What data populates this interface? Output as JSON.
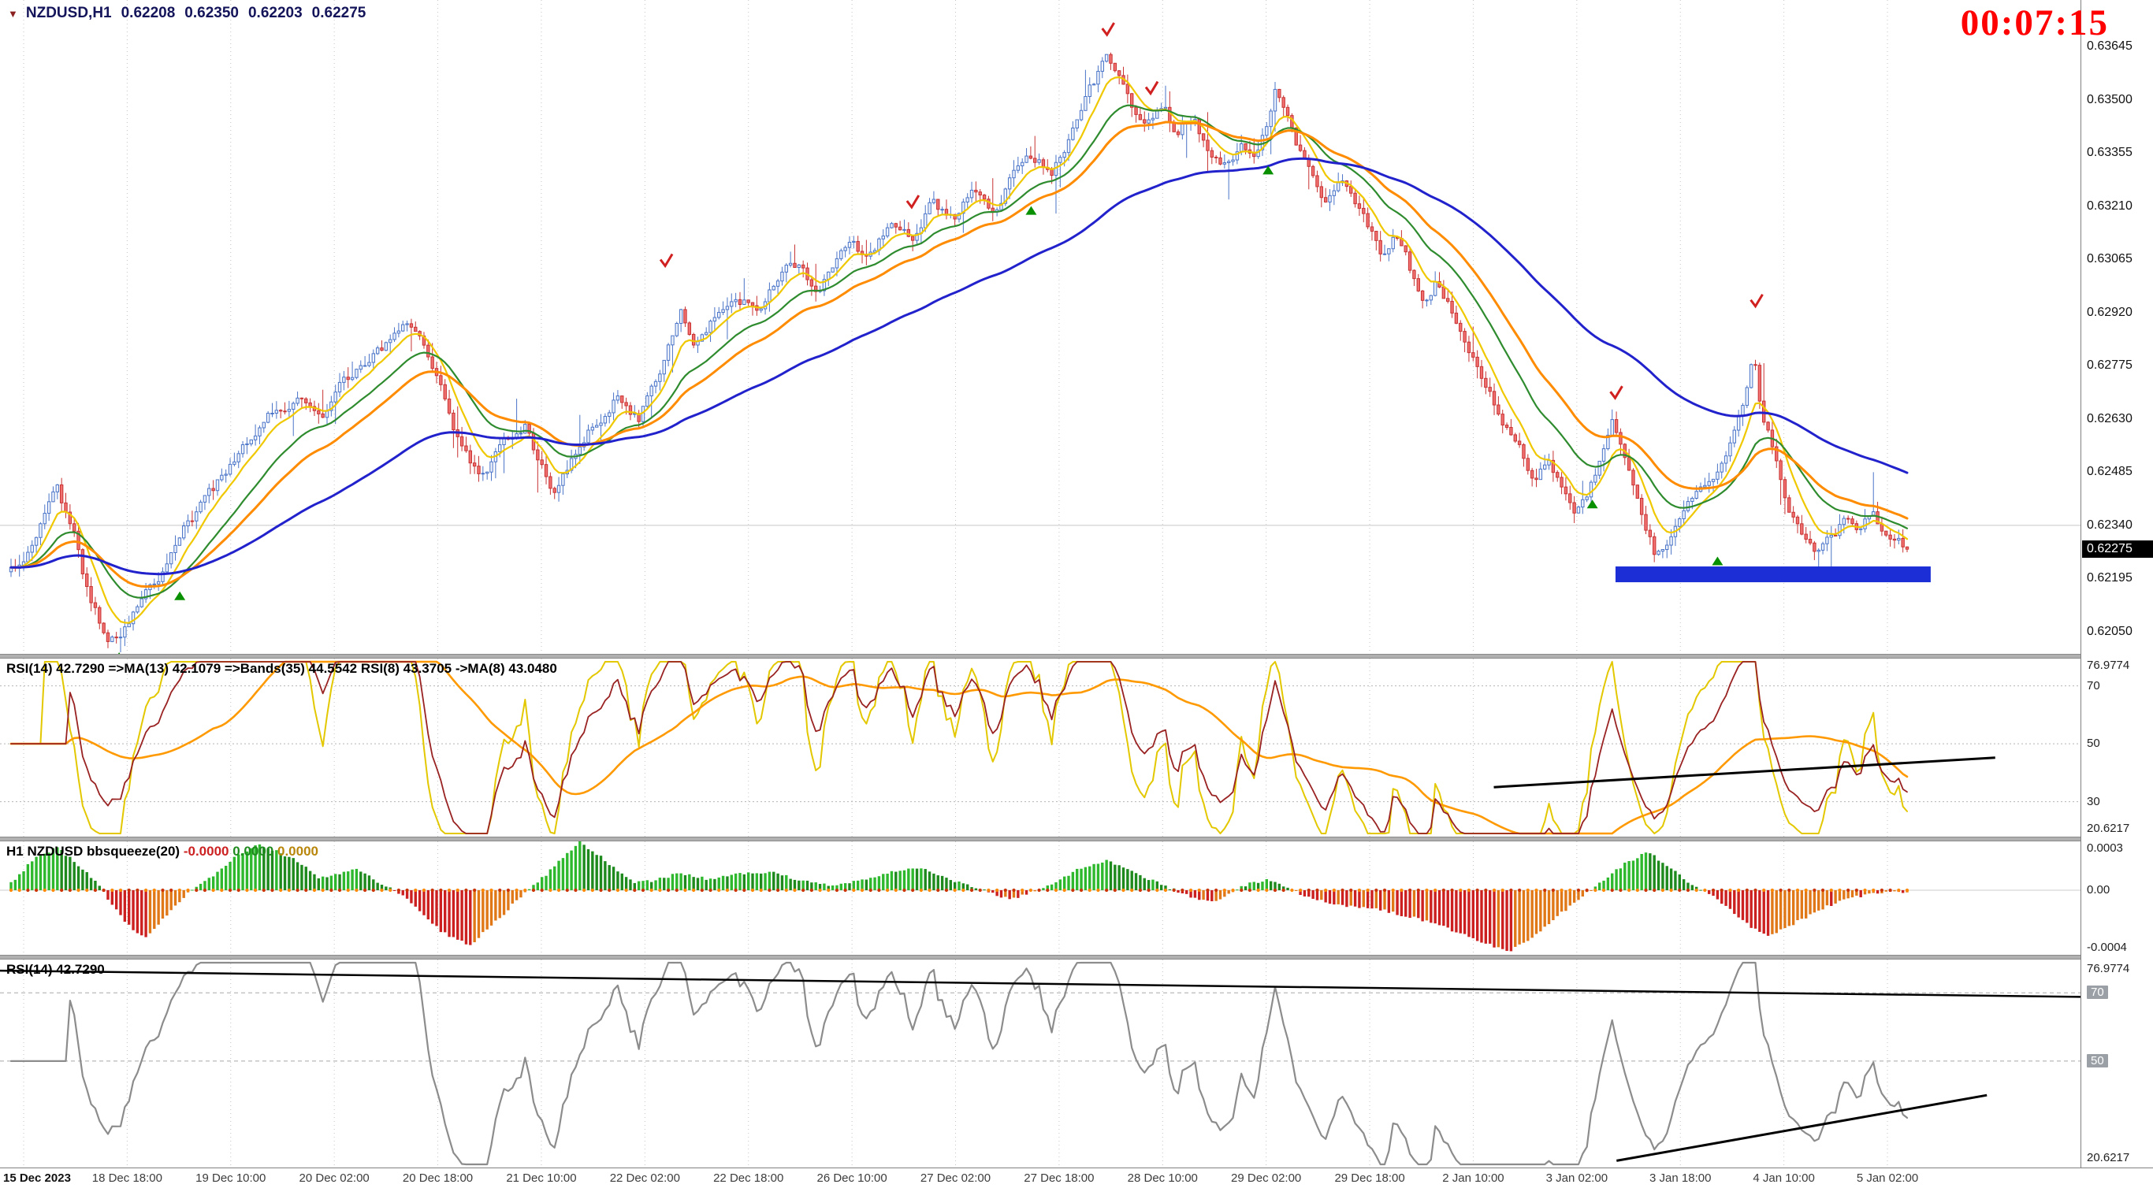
{
  "header": {
    "dropdown_icon": "▼",
    "symbol": "NZDUSD,H1",
    "open": "0.62208",
    "high": "0.62350",
    "low": "0.62203",
    "close": "0.62275",
    "countdown": "00:07:15"
  },
  "price_scale": {
    "labels": [
      "0.63645",
      "0.63500",
      "0.63355",
      "0.63210",
      "0.63065",
      "0.62920",
      "0.62775",
      "0.62630",
      "0.62485",
      "0.62340",
      "0.62195",
      "0.62050"
    ],
    "current_price": "0.62275"
  },
  "time_axis": {
    "labels": [
      "15 Dec 2023",
      "18 Dec 18:00",
      "19 Dec 10:00",
      "20 Dec 02:00",
      "20 Dec 18:00",
      "21 Dec 10:00",
      "22 Dec 02:00",
      "22 Dec 18:00",
      "26 Dec 10:00",
      "27 Dec 02:00",
      "27 Dec 18:00",
      "28 Dec 10:00",
      "29 Dec 02:00",
      "29 Dec 18:00",
      "2 Jan 10:00",
      "3 Jan 02:00",
      "3 Jan 18:00",
      "4 Jan 10:00",
      "5 Jan 02:00"
    ]
  },
  "indicator_panels": {
    "rsi_multi": {
      "label": "RSI(14) 42.7290   =>MA(13) 42.1079   =>Bands(35) 44.5542   RSI(8) 43.3705   ->MA(8) 43.0480",
      "scale": [
        "76.9774",
        "70",
        "50",
        "30",
        "20.6217"
      ]
    },
    "bbsqueeze": {
      "label_prefix": "H1 NZDUSD bbsqueeze(20)",
      "values": [
        "-0.0000",
        "0.0000",
        "0.0000"
      ],
      "scale": [
        "0.0003",
        "0.00",
        "-0.0004"
      ]
    },
    "rsi_single": {
      "label": "RSI(14) 42.7290",
      "scale": [
        "76.9774",
        "70",
        "50",
        "20.6217"
      ]
    }
  },
  "colors": {
    "up_candle": "#eef3fb",
    "up_border": "#4a74c8",
    "down_candle": "#f07070",
    "down_border": "#c83232",
    "ema_fast": "#f0c800",
    "ema_mid": "#2e8b2e",
    "ema_slow": "#ff8c00",
    "ema_long": "#2222cc",
    "rsi_fast": "#e3c800",
    "rsi_band": "#ff9900",
    "rsi_main": "#992222",
    "squeeze_pos": "#2db82d",
    "squeeze_pos_dark": "#1e8a1e",
    "squeeze_neg": "#cc2020",
    "squeeze_neg_alt": "#e07818",
    "dot_a": "#ff8800",
    "dot_b": "#cc3300",
    "rsi_gray": "#8c8c8c",
    "trend": "#000000",
    "support": "#1c2fd6",
    "timer": "#ff0000",
    "grid": "#c4c4c4",
    "level": "#b4b4b4",
    "buy": "#089000",
    "sell": "#d02020"
  },
  "chart_data": [
    {
      "type": "candlestick",
      "title": "NZDUSD,H1",
      "ohlc_header": {
        "open": 0.62208,
        "high": 0.6235,
        "low": 0.62203,
        "close": 0.62275
      },
      "ylim": [
        0.6199,
        0.6377
      ],
      "y_ticks": [
        0.63645,
        0.635,
        0.63355,
        0.6321,
        0.63065,
        0.6292,
        0.62775,
        0.6263,
        0.62485,
        0.6234,
        0.62195,
        0.6205
      ],
      "bars": 451,
      "last_close": 0.62275,
      "hline": 0.6234,
      "close_path": [
        [
          0,
          0.6222
        ],
        [
          0.01,
          0.6228
        ],
        [
          0.024,
          0.6244
        ],
        [
          0.034,
          0.623
        ],
        [
          0.042,
          0.6212
        ],
        [
          0.05,
          0.6204
        ],
        [
          0.058,
          0.6203
        ],
        [
          0.068,
          0.6215
        ],
        [
          0.08,
          0.6222
        ],
        [
          0.09,
          0.6232
        ],
        [
          0.105,
          0.6242
        ],
        [
          0.116,
          0.625
        ],
        [
          0.128,
          0.6259
        ],
        [
          0.138,
          0.6265
        ],
        [
          0.153,
          0.6269
        ],
        [
          0.164,
          0.6261
        ],
        [
          0.175,
          0.6273
        ],
        [
          0.19,
          0.628
        ],
        [
          0.205,
          0.6287
        ],
        [
          0.212,
          0.6289
        ],
        [
          0.223,
          0.6277
        ],
        [
          0.238,
          0.6254
        ],
        [
          0.249,
          0.6247
        ],
        [
          0.26,
          0.6258
        ],
        [
          0.271,
          0.6262
        ],
        [
          0.279,
          0.625
        ],
        [
          0.286,
          0.6244
        ],
        [
          0.297,
          0.6254
        ],
        [
          0.308,
          0.6262
        ],
        [
          0.32,
          0.6269
        ],
        [
          0.331,
          0.6263
        ],
        [
          0.342,
          0.6277
        ],
        [
          0.353,
          0.6294
        ],
        [
          0.36,
          0.6284
        ],
        [
          0.371,
          0.629
        ],
        [
          0.382,
          0.6297
        ],
        [
          0.394,
          0.6293
        ],
        [
          0.405,
          0.6301
        ],
        [
          0.416,
          0.6306
        ],
        [
          0.423,
          0.6297
        ],
        [
          0.43,
          0.6301
        ],
        [
          0.442,
          0.6311
        ],
        [
          0.453,
          0.6307
        ],
        [
          0.464,
          0.6316
        ],
        [
          0.475,
          0.6312
        ],
        [
          0.486,
          0.6322
        ],
        [
          0.497,
          0.6318
        ],
        [
          0.508,
          0.6325
        ],
        [
          0.519,
          0.632
        ],
        [
          0.527,
          0.6329
        ],
        [
          0.538,
          0.6335
        ],
        [
          0.549,
          0.6331
        ],
        [
          0.56,
          0.6341
        ],
        [
          0.567,
          0.6352
        ],
        [
          0.578,
          0.6361
        ],
        [
          0.586,
          0.6354
        ],
        [
          0.593,
          0.6346
        ],
        [
          0.601,
          0.6343
        ],
        [
          0.608,
          0.6348
        ],
        [
          0.615,
          0.6341
        ],
        [
          0.623,
          0.6346
        ],
        [
          0.63,
          0.6338
        ],
        [
          0.641,
          0.6333
        ],
        [
          0.649,
          0.6338
        ],
        [
          0.656,
          0.6335
        ],
        [
          0.663,
          0.6343
        ],
        [
          0.667,
          0.6354
        ],
        [
          0.678,
          0.6338
        ],
        [
          0.686,
          0.6329
        ],
        [
          0.693,
          0.6322
        ],
        [
          0.7,
          0.6329
        ],
        [
          0.708,
          0.6324
        ],
        [
          0.715,
          0.6316
        ],
        [
          0.723,
          0.6308
        ],
        [
          0.73,
          0.6314
        ],
        [
          0.737,
          0.6305
        ],
        [
          0.745,
          0.6295
        ],
        [
          0.752,
          0.6301
        ],
        [
          0.76,
          0.6292
        ],
        [
          0.767,
          0.6282
        ],
        [
          0.774,
          0.6276
        ],
        [
          0.782,
          0.6267
        ],
        [
          0.789,
          0.6261
        ],
        [
          0.797,
          0.6253
        ],
        [
          0.804,
          0.6246
        ],
        [
          0.811,
          0.6252
        ],
        [
          0.819,
          0.6244
        ],
        [
          0.826,
          0.6238
        ],
        [
          0.834,
          0.6246
        ],
        [
          0.841,
          0.6257
        ],
        [
          0.845,
          0.6263
        ],
        [
          0.852,
          0.625
        ],
        [
          0.86,
          0.6235
        ],
        [
          0.867,
          0.6226
        ],
        [
          0.874,
          0.6231
        ],
        [
          0.882,
          0.6237
        ],
        [
          0.889,
          0.6242
        ],
        [
          0.896,
          0.6244
        ],
        [
          0.904,
          0.625
        ],
        [
          0.911,
          0.6261
        ],
        [
          0.919,
          0.628
        ],
        [
          0.922,
          0.6268
        ],
        [
          0.93,
          0.6253
        ],
        [
          0.937,
          0.6238
        ],
        [
          0.945,
          0.6229
        ],
        [
          0.952,
          0.6225
        ],
        [
          0.959,
          0.6231
        ],
        [
          0.967,
          0.6235
        ],
        [
          0.974,
          0.6233
        ],
        [
          0.982,
          0.6237
        ],
        [
          0.989,
          0.6231
        ],
        [
          1,
          0.62275
        ]
      ],
      "emas": [
        {
          "period": 8,
          "color_key": "ema_fast"
        },
        {
          "period": 21,
          "color_key": "ema_mid"
        },
        {
          "period": 34,
          "color_key": "ema_slow"
        },
        {
          "period": 89,
          "color_key": "ema_long"
        }
      ],
      "markers": {
        "buys": [
          [
            0.057,
            0.6199
          ],
          [
            0.089,
            0.6216
          ],
          [
            0.538,
            0.6321
          ],
          [
            0.663,
            0.6332
          ],
          [
            0.834,
            0.6241
          ],
          [
            0.9,
            0.62255
          ]
        ],
        "sells": [
          [
            0.345,
            0.6306
          ],
          [
            0.475,
            0.6322
          ],
          [
            0.578,
            0.6369
          ],
          [
            0.601,
            0.6353
          ],
          [
            0.846,
            0.627
          ],
          [
            0.92,
            0.6295
          ]
        ]
      },
      "support_zone": {
        "x_from": 0.7765,
        "x_to": 0.928,
        "price_top": 0.62228,
        "price_bottom": 0.62185
      }
    },
    {
      "type": "line",
      "name": "RSI(14) + MA(13) + Bands(35) + RSI(8) + MA(8)",
      "range": [
        20.6217,
        76.9774
      ],
      "levels": [
        70,
        50,
        30
      ],
      "current_values": {
        "rsi14": 42.729,
        "ma13": 42.1079,
        "bands35": 44.5542,
        "rsi8": 43.3705,
        "ma8": 43.048
      },
      "series": [
        {
          "name": "RSI(8)",
          "period": 8,
          "color_key": "rsi_fast"
        },
        {
          "name": "Bands(35) mid",
          "period": 35,
          "color_key": "rsi_band"
        },
        {
          "name": "RSI(14)",
          "period": 14,
          "color_key": "rsi_main"
        }
      ],
      "trendline": {
        "x1": 0.718,
        "v1": 35.0,
        "x2": 0.959,
        "v2": 45.2
      }
    },
    {
      "type": "bar",
      "name": "bbsqueeze(20)",
      "ylim": [
        -0.0004,
        0.0003
      ],
      "y_ticks": [
        0.0003,
        0,
        -0.0004
      ],
      "current_values": [
        -0.0,
        0.0,
        0.0
      ],
      "zero_line_dots": true,
      "values_path": [
        [
          0,
          5e-05
        ],
        [
          0.012,
          0.0002
        ],
        [
          0.024,
          0.00028
        ],
        [
          0.04,
          0.00012
        ],
        [
          0.048,
          0
        ],
        [
          0.055,
          -0.00012
        ],
        [
          0.065,
          -0.00028
        ],
        [
          0.072,
          -0.0003
        ],
        [
          0.085,
          -0.00012
        ],
        [
          0.095,
          0
        ],
        [
          0.105,
          8e-05
        ],
        [
          0.118,
          0.00022
        ],
        [
          0.131,
          0.0003
        ],
        [
          0.15,
          0.0002
        ],
        [
          0.163,
          8e-05
        ],
        [
          0.172,
          0.0001
        ],
        [
          0.183,
          0.00014
        ],
        [
          0.195,
          4e-05
        ],
        [
          0.203,
          0
        ],
        [
          0.212,
          -0.0001
        ],
        [
          0.228,
          -0.00028
        ],
        [
          0.242,
          -0.00036
        ],
        [
          0.258,
          -0.00018
        ],
        [
          0.272,
          0
        ],
        [
          0.282,
          0.0001
        ],
        [
          0.3,
          0.00032
        ],
        [
          0.315,
          0.00018
        ],
        [
          0.328,
          5e-05
        ],
        [
          0.338,
          6e-05
        ],
        [
          0.352,
          0.00011
        ],
        [
          0.368,
          7e-05
        ],
        [
          0.385,
          0.00011
        ],
        [
          0.4,
          0.00012
        ],
        [
          0.418,
          6e-05
        ],
        [
          0.432,
          3e-05
        ],
        [
          0.45,
          7e-05
        ],
        [
          0.465,
          0.00012
        ],
        [
          0.48,
          0.00015
        ],
        [
          0.497,
          6e-05
        ],
        [
          0.51,
          1e-05
        ],
        [
          0.52,
          -3e-05
        ],
        [
          0.528,
          -6e-05
        ],
        [
          0.537,
          -2e-05
        ],
        [
          0.55,
          5e-05
        ],
        [
          0.565,
          0.00015
        ],
        [
          0.578,
          0.0002
        ],
        [
          0.595,
          0.0001
        ],
        [
          0.61,
          2e-05
        ],
        [
          0.622,
          -4e-05
        ],
        [
          0.632,
          -8e-05
        ],
        [
          0.642,
          -3e-05
        ],
        [
          0.652,
          4e-05
        ],
        [
          0.662,
          7e-05
        ],
        [
          0.673,
          2e-05
        ],
        [
          0.683,
          -4e-05
        ],
        [
          0.7,
          -0.0001
        ],
        [
          0.72,
          -0.00012
        ],
        [
          0.74,
          -0.00018
        ],
        [
          0.76,
          -0.00026
        ],
        [
          0.776,
          -0.00034
        ],
        [
          0.79,
          -0.0004
        ],
        [
          0.802,
          -0.00032
        ],
        [
          0.815,
          -0.00018
        ],
        [
          0.826,
          -6e-05
        ],
        [
          0.833,
          0
        ],
        [
          0.841,
          8e-05
        ],
        [
          0.852,
          0.00018
        ],
        [
          0.863,
          0.00025
        ],
        [
          0.875,
          0.00015
        ],
        [
          0.886,
          4e-05
        ],
        [
          0.893,
          0
        ],
        [
          0.902,
          -8e-05
        ],
        [
          0.913,
          -0.0002
        ],
        [
          0.926,
          -0.0003
        ],
        [
          0.94,
          -0.00022
        ],
        [
          0.955,
          -0.00012
        ],
        [
          0.97,
          -5e-05
        ],
        [
          0.985,
          -2e-05
        ],
        [
          1,
          -1e-05
        ]
      ]
    },
    {
      "type": "line",
      "name": "RSI(14)",
      "period": 14,
      "color_key": "rsi_gray",
      "range": [
        20.6217,
        76.9774
      ],
      "levels": [
        70,
        50
      ],
      "current_value": 42.729,
      "trendlines": [
        {
          "x1": 0.0,
          "v1": 76.5,
          "x2": 1.0,
          "v2": 68.8
        },
        {
          "x1": 0.777,
          "v1": 20.8,
          "x2": 0.955,
          "v2": 40.0
        }
      ]
    }
  ]
}
